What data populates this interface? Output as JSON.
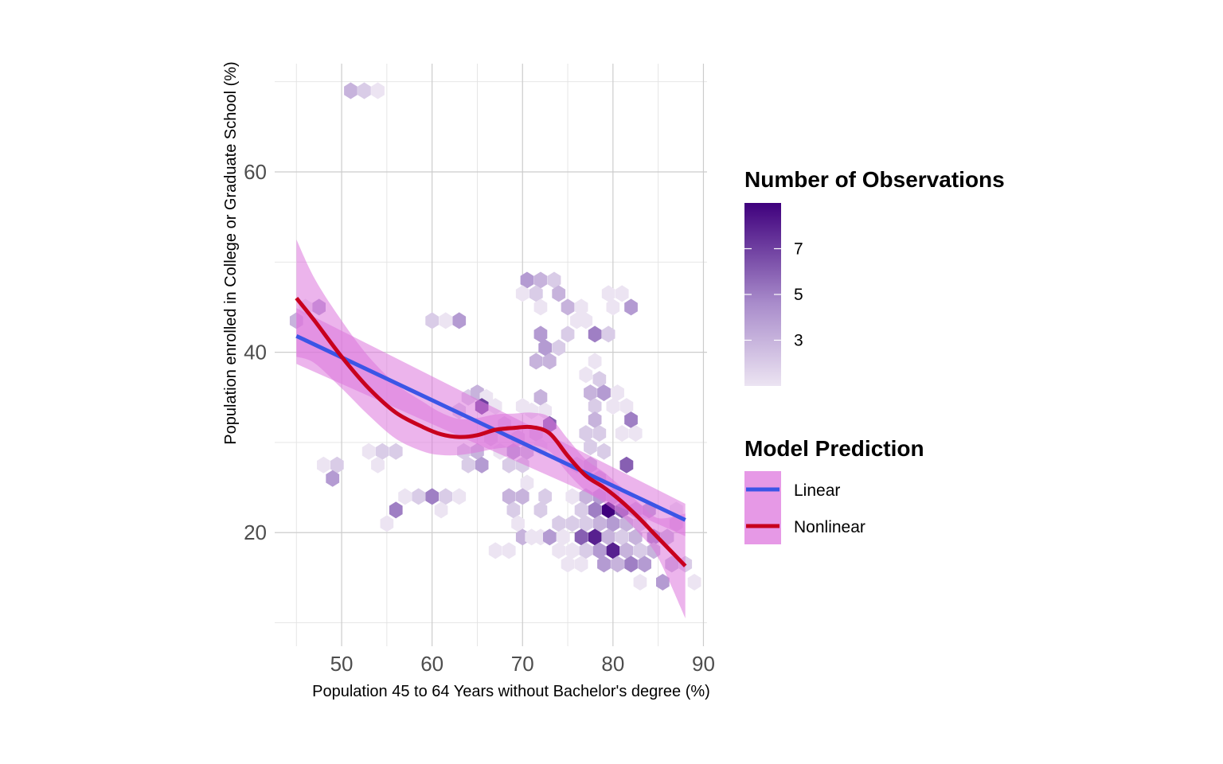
{
  "chart_data": {
    "type": "scatter",
    "subtype": "hexbin",
    "title": "",
    "xlabel": "Population 45 to 64 Years without Bachelor's degree (%)",
    "ylabel": "Population enrolled in College or Graduate School (%)",
    "xlim": [
      42.6,
      90.4
    ],
    "ylim": [
      7.4,
      72.0
    ],
    "x_ticks": [
      50,
      60,
      70,
      80,
      90
    ],
    "x_tick_labels": [
      "50",
      "60",
      "70",
      "80",
      "90"
    ],
    "y_ticks": [
      20,
      40,
      60
    ],
    "y_tick_labels": [
      "20",
      "40",
      "60"
    ],
    "grid": true,
    "legend_position": "right",
    "colors": {
      "count_low": "#ece4f2",
      "count_high": "#3f007d",
      "linear": "#3b55e6",
      "nonlinear": "#c8001e",
      "ribbon": "#dd77dd"
    },
    "hexbins": [
      {
        "x": 51,
        "y": 69,
        "count": 3
      },
      {
        "x": 52.5,
        "y": 69,
        "count": 2
      },
      {
        "x": 54,
        "y": 69,
        "count": 1
      },
      {
        "x": 45,
        "y": 43.5,
        "count": 3
      },
      {
        "x": 46,
        "y": 45,
        "count": 1
      },
      {
        "x": 47.5,
        "y": 45,
        "count": 4
      },
      {
        "x": 48,
        "y": 27.5,
        "count": 1
      },
      {
        "x": 49.5,
        "y": 27.5,
        "count": 2
      },
      {
        "x": 49,
        "y": 26,
        "count": 4
      },
      {
        "x": 53,
        "y": 29,
        "count": 1
      },
      {
        "x": 54.5,
        "y": 29,
        "count": 2
      },
      {
        "x": 56,
        "y": 29,
        "count": 2
      },
      {
        "x": 54,
        "y": 27.5,
        "count": 1
      },
      {
        "x": 55,
        "y": 21,
        "count": 1
      },
      {
        "x": 56,
        "y": 22.5,
        "count": 5
      },
      {
        "x": 57,
        "y": 24,
        "count": 1
      },
      {
        "x": 58.5,
        "y": 24,
        "count": 2
      },
      {
        "x": 60,
        "y": 24,
        "count": 5
      },
      {
        "x": 61.5,
        "y": 24,
        "count": 2
      },
      {
        "x": 63,
        "y": 24,
        "count": 1
      },
      {
        "x": 61,
        "y": 22.5,
        "count": 1
      },
      {
        "x": 60,
        "y": 43.5,
        "count": 2
      },
      {
        "x": 61.5,
        "y": 43.5,
        "count": 1
      },
      {
        "x": 63,
        "y": 43.5,
        "count": 4
      },
      {
        "x": 63,
        "y": 33.5,
        "count": 2
      },
      {
        "x": 64,
        "y": 35,
        "count": 2
      },
      {
        "x": 65,
        "y": 35.5,
        "count": 3
      },
      {
        "x": 66,
        "y": 35,
        "count": 1
      },
      {
        "x": 65.5,
        "y": 34,
        "count": 7
      },
      {
        "x": 67,
        "y": 34,
        "count": 1
      },
      {
        "x": 63.5,
        "y": 29,
        "count": 2
      },
      {
        "x": 65,
        "y": 29,
        "count": 3
      },
      {
        "x": 64,
        "y": 27.5,
        "count": 2
      },
      {
        "x": 65.5,
        "y": 27.5,
        "count": 4
      },
      {
        "x": 66.5,
        "y": 30.5,
        "count": 2
      },
      {
        "x": 68,
        "y": 32,
        "count": 2
      },
      {
        "x": 67.5,
        "y": 29,
        "count": 1
      },
      {
        "x": 68.5,
        "y": 27.5,
        "count": 2
      },
      {
        "x": 69,
        "y": 29,
        "count": 4
      },
      {
        "x": 70,
        "y": 27.5,
        "count": 2
      },
      {
        "x": 70.5,
        "y": 29,
        "count": 3
      },
      {
        "x": 69.5,
        "y": 30.5,
        "count": 2
      },
      {
        "x": 70.5,
        "y": 25.5,
        "count": 1
      },
      {
        "x": 71,
        "y": 33.5,
        "count": 1
      },
      {
        "x": 70,
        "y": 34,
        "count": 1
      },
      {
        "x": 72,
        "y": 35,
        "count": 3
      },
      {
        "x": 72.5,
        "y": 33.5,
        "count": 1
      },
      {
        "x": 73,
        "y": 32,
        "count": 6
      },
      {
        "x": 71.5,
        "y": 31,
        "count": 2
      },
      {
        "x": 72,
        "y": 29.5,
        "count": 1
      },
      {
        "x": 68.5,
        "y": 24,
        "count": 3
      },
      {
        "x": 70,
        "y": 24,
        "count": 3
      },
      {
        "x": 69,
        "y": 22.5,
        "count": 2
      },
      {
        "x": 72,
        "y": 22.5,
        "count": 2
      },
      {
        "x": 72.5,
        "y": 24,
        "count": 2
      },
      {
        "x": 69.5,
        "y": 21,
        "count": 1
      },
      {
        "x": 70,
        "y": 19.5,
        "count": 3
      },
      {
        "x": 67,
        "y": 18,
        "count": 1
      },
      {
        "x": 68.5,
        "y": 18,
        "count": 1
      },
      {
        "x": 71,
        "y": 19.5,
        "count": 1
      },
      {
        "x": 72,
        "y": 19.5,
        "count": 1
      },
      {
        "x": 70.5,
        "y": 48,
        "count": 4
      },
      {
        "x": 72,
        "y": 48,
        "count": 3
      },
      {
        "x": 73.5,
        "y": 48,
        "count": 2
      },
      {
        "x": 70,
        "y": 46.5,
        "count": 1
      },
      {
        "x": 71.5,
        "y": 46.5,
        "count": 2
      },
      {
        "x": 74,
        "y": 46.5,
        "count": 3
      },
      {
        "x": 72,
        "y": 45,
        "count": 1
      },
      {
        "x": 75,
        "y": 45,
        "count": 3
      },
      {
        "x": 76.5,
        "y": 45,
        "count": 1
      },
      {
        "x": 76,
        "y": 43.5,
        "count": 1
      },
      {
        "x": 77,
        "y": 43.5,
        "count": 1
      },
      {
        "x": 72,
        "y": 42,
        "count": 4
      },
      {
        "x": 72.5,
        "y": 40.5,
        "count": 4
      },
      {
        "x": 74,
        "y": 40.5,
        "count": 2
      },
      {
        "x": 75,
        "y": 42,
        "count": 2
      },
      {
        "x": 71.5,
        "y": 39,
        "count": 3
      },
      {
        "x": 73,
        "y": 39,
        "count": 3
      },
      {
        "x": 78,
        "y": 42,
        "count": 5
      },
      {
        "x": 79.5,
        "y": 42,
        "count": 2
      },
      {
        "x": 79.5,
        "y": 46.5,
        "count": 1
      },
      {
        "x": 81,
        "y": 46.5,
        "count": 1
      },
      {
        "x": 80,
        "y": 45,
        "count": 1
      },
      {
        "x": 82,
        "y": 45,
        "count": 4
      },
      {
        "x": 77,
        "y": 37.5,
        "count": 1
      },
      {
        "x": 78,
        "y": 39,
        "count": 1
      },
      {
        "x": 78.5,
        "y": 37,
        "count": 2
      },
      {
        "x": 77.5,
        "y": 35.5,
        "count": 3
      },
      {
        "x": 79,
        "y": 35.5,
        "count": 4
      },
      {
        "x": 80.5,
        "y": 35.5,
        "count": 1
      },
      {
        "x": 78,
        "y": 34,
        "count": 2
      },
      {
        "x": 80,
        "y": 34,
        "count": 1
      },
      {
        "x": 81.5,
        "y": 34,
        "count": 1
      },
      {
        "x": 78,
        "y": 32.5,
        "count": 3
      },
      {
        "x": 82,
        "y": 32.5,
        "count": 5
      },
      {
        "x": 77,
        "y": 31,
        "count": 2
      },
      {
        "x": 78.5,
        "y": 31,
        "count": 2
      },
      {
        "x": 81,
        "y": 31,
        "count": 1
      },
      {
        "x": 82.5,
        "y": 31,
        "count": 1
      },
      {
        "x": 77.5,
        "y": 29.5,
        "count": 2
      },
      {
        "x": 79,
        "y": 29,
        "count": 2
      },
      {
        "x": 81.5,
        "y": 27.5,
        "count": 6
      },
      {
        "x": 76,
        "y": 27.5,
        "count": 2
      },
      {
        "x": 77.5,
        "y": 27.5,
        "count": 3
      },
      {
        "x": 78.5,
        "y": 26,
        "count": 3
      },
      {
        "x": 75.5,
        "y": 24,
        "count": 1
      },
      {
        "x": 77,
        "y": 24,
        "count": 3
      },
      {
        "x": 78.5,
        "y": 24,
        "count": 4
      },
      {
        "x": 80,
        "y": 24,
        "count": 3
      },
      {
        "x": 76.5,
        "y": 22.5,
        "count": 2
      },
      {
        "x": 78,
        "y": 22.5,
        "count": 5
      },
      {
        "x": 79.5,
        "y": 22.5,
        "count": 9
      },
      {
        "x": 81,
        "y": 22.5,
        "count": 6
      },
      {
        "x": 82.5,
        "y": 22.5,
        "count": 3
      },
      {
        "x": 84,
        "y": 22.5,
        "count": 4
      },
      {
        "x": 74,
        "y": 21,
        "count": 2
      },
      {
        "x": 75.5,
        "y": 21,
        "count": 2
      },
      {
        "x": 77,
        "y": 21,
        "count": 2
      },
      {
        "x": 78.5,
        "y": 21,
        "count": 3
      },
      {
        "x": 80,
        "y": 21,
        "count": 4
      },
      {
        "x": 81.5,
        "y": 21,
        "count": 3
      },
      {
        "x": 83,
        "y": 21,
        "count": 2
      },
      {
        "x": 73,
        "y": 19.5,
        "count": 4
      },
      {
        "x": 74.5,
        "y": 19.5,
        "count": 1
      },
      {
        "x": 76.5,
        "y": 19.5,
        "count": 6
      },
      {
        "x": 78,
        "y": 19.5,
        "count": 8
      },
      {
        "x": 79.5,
        "y": 19.5,
        "count": 3
      },
      {
        "x": 81,
        "y": 19.5,
        "count": 2
      },
      {
        "x": 82.5,
        "y": 19.5,
        "count": 3
      },
      {
        "x": 84.5,
        "y": 19.5,
        "count": 5
      },
      {
        "x": 86,
        "y": 19.5,
        "count": 3
      },
      {
        "x": 74,
        "y": 18,
        "count": 1
      },
      {
        "x": 75.5,
        "y": 18,
        "count": 1
      },
      {
        "x": 77,
        "y": 18,
        "count": 2
      },
      {
        "x": 78.5,
        "y": 18,
        "count": 4
      },
      {
        "x": 80,
        "y": 18,
        "count": 8
      },
      {
        "x": 81.5,
        "y": 18,
        "count": 3
      },
      {
        "x": 83,
        "y": 18,
        "count": 2
      },
      {
        "x": 84.5,
        "y": 18,
        "count": 3
      },
      {
        "x": 75,
        "y": 16.5,
        "count": 1
      },
      {
        "x": 76.5,
        "y": 16.5,
        "count": 1
      },
      {
        "x": 79,
        "y": 16.5,
        "count": 4
      },
      {
        "x": 80.5,
        "y": 16.5,
        "count": 3
      },
      {
        "x": 82,
        "y": 16.5,
        "count": 5
      },
      {
        "x": 83.5,
        "y": 16.5,
        "count": 4
      },
      {
        "x": 86.5,
        "y": 16.5,
        "count": 3
      },
      {
        "x": 88,
        "y": 16.5,
        "count": 2
      },
      {
        "x": 83,
        "y": 14.5,
        "count": 1
      },
      {
        "x": 85.5,
        "y": 14.5,
        "count": 4
      },
      {
        "x": 89,
        "y": 14.5,
        "count": 1
      },
      {
        "x": 87,
        "y": 21,
        "count": 2
      },
      {
        "x": 87,
        "y": 22.5,
        "count": 1
      }
    ],
    "series": [
      {
        "name": "Linear",
        "color": "#3b55e6",
        "x": [
          45,
          88
        ],
        "y": [
          41.8,
          21.4
        ],
        "ci_lower": [
          38.7,
          19.6
        ],
        "ci_upper": [
          44.9,
          23.2
        ]
      },
      {
        "name": "Nonlinear",
        "color": "#c8001e",
        "x": [
          45,
          47,
          50,
          53,
          56,
          59,
          61,
          63,
          65,
          67,
          69,
          71,
          73,
          75,
          77,
          79,
          81,
          83,
          85,
          88
        ],
        "y": [
          46.0,
          43.5,
          39.5,
          36.0,
          33.3,
          31.7,
          30.9,
          30.6,
          30.8,
          31.4,
          31.6,
          31.7,
          31.0,
          28.5,
          26.3,
          25.0,
          23.4,
          21.5,
          19.4,
          16.3
        ],
        "ci_lower": [
          39.5,
          38.8,
          36.0,
          33.0,
          30.4,
          29.0,
          28.6,
          28.6,
          28.9,
          29.3,
          29.5,
          29.7,
          29.0,
          26.6,
          24.6,
          23.3,
          21.8,
          19.8,
          17.2,
          10.5
        ],
        "ci_upper": [
          52.5,
          48.2,
          43.5,
          39.5,
          36.5,
          34.5,
          33.3,
          32.6,
          32.7,
          33.1,
          33.2,
          33.3,
          32.8,
          30.4,
          28.1,
          26.7,
          25.0,
          23.2,
          21.6,
          22.1
        ]
      }
    ],
    "legend": {
      "fill_title": "Number of Observations",
      "fill_breaks": [
        3,
        5,
        7
      ],
      "fill_break_labels": [
        "3",
        "5",
        "7"
      ],
      "fill_range": [
        1,
        9
      ],
      "model_title": "Model Prediction",
      "model_items": [
        "Linear",
        "Nonlinear"
      ]
    }
  }
}
